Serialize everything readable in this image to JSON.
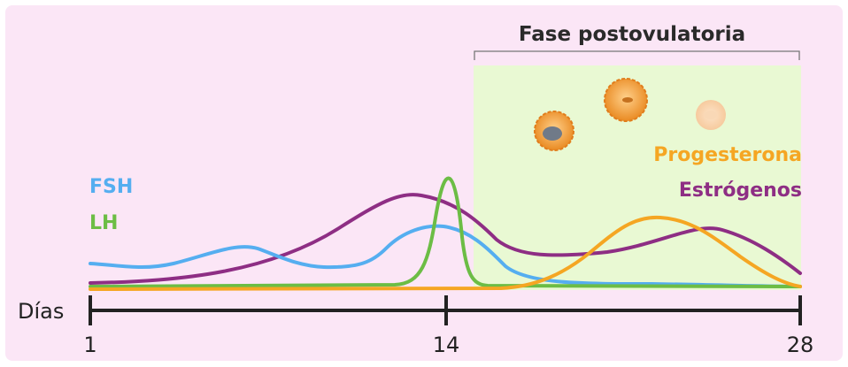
{
  "phase_label": "Fase postovulatoria",
  "axis": {
    "label": "Días",
    "ticks": [
      "1",
      "14",
      "28"
    ]
  },
  "legend": {
    "fsh": "FSH",
    "lh": "LH",
    "progesterone": "Progesterona",
    "estrogens": "Estrógenos"
  },
  "colors": {
    "background": "#fbe6f6",
    "postovulatory_region": "#e9f9d3",
    "fsh": "#55aef0",
    "lh": "#6cbd45",
    "progesterone": "#f5a623",
    "estrogens": "#8e2e84",
    "axis": "#222222",
    "follicle": "#f0a640"
  },
  "icons": [
    "ruptured-follicle-icon",
    "corpus-luteum-icon",
    "corpus-albicans-icon"
  ]
}
